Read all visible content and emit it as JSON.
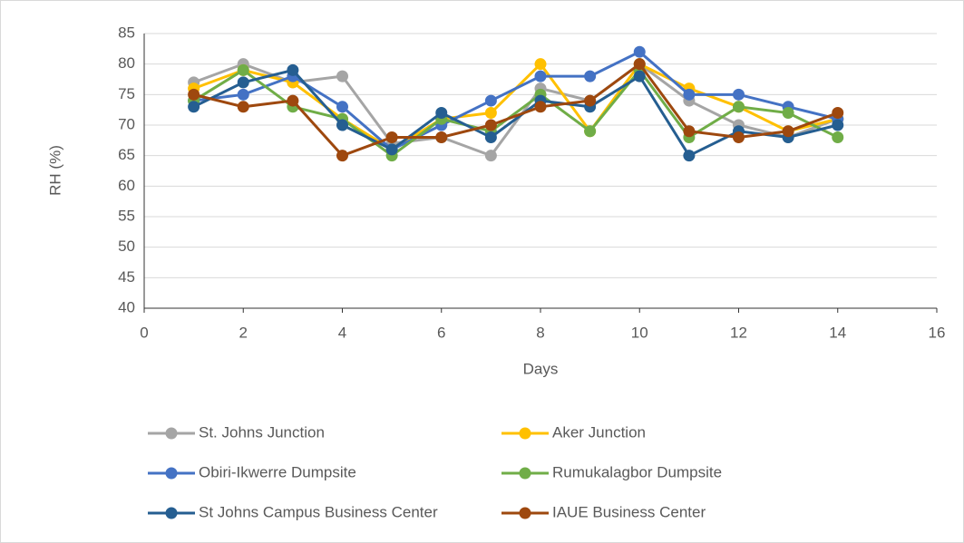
{
  "chart_data": {
    "type": "line",
    "xlabel": "Days",
    "ylabel": "RH (%)",
    "x": [
      1,
      2,
      3,
      4,
      5,
      6,
      7,
      8,
      9,
      10,
      11,
      12,
      13,
      14
    ],
    "series": [
      {
        "name": "St. Johns Junction",
        "color": "#a5a5a5",
        "values": [
          77,
          80,
          77,
          78,
          67,
          68,
          65,
          76,
          74,
          80,
          74,
          70,
          68,
          71
        ]
      },
      {
        "name": "Aker Junction",
        "color": "#ffc000",
        "values": [
          76,
          79,
          77,
          71,
          66,
          71,
          72,
          80,
          69,
          80,
          76,
          73,
          69,
          71
        ]
      },
      {
        "name": "Obiri-Ikwerre Dumpsite",
        "color": "#4472c4",
        "values": [
          74,
          75,
          78,
          73,
          66,
          70,
          74,
          78,
          78,
          82,
          75,
          75,
          73,
          71
        ]
      },
      {
        "name": "Rumukalagbor Dumpsite",
        "color": "#70ad47",
        "values": [
          74,
          79,
          73,
          71,
          65,
          71,
          69,
          75,
          69,
          79,
          68,
          73,
          72,
          68
        ]
      },
      {
        "name": "St Johns Campus Business Center",
        "color": "#255e91",
        "values": [
          73,
          77,
          79,
          70,
          66,
          72,
          68,
          74,
          73,
          78,
          65,
          69,
          68,
          70
        ]
      },
      {
        "name": "IAUE Business Center",
        "color": "#9e480e",
        "values": [
          75,
          73,
          74,
          65,
          68,
          68,
          70,
          73,
          74,
          80,
          69,
          68,
          69,
          72
        ]
      }
    ],
    "xlim": [
      0,
      16
    ],
    "xticks": [
      0,
      2,
      4,
      6,
      8,
      10,
      12,
      14,
      16
    ],
    "ylim": [
      40,
      85
    ],
    "yticks": [
      40,
      45,
      50,
      55,
      60,
      65,
      70,
      75,
      80,
      85
    ],
    "grid": true,
    "legend": "bottom"
  }
}
